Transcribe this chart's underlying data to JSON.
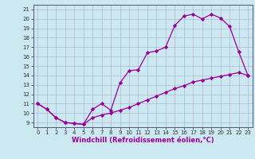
{
  "xlabel": "Windchill (Refroidissement éolien,°C)",
  "bg_color": "#cce8f0",
  "line_color": "#990099",
  "xlim": [
    -0.5,
    23.5
  ],
  "ylim": [
    8.5,
    21.5
  ],
  "xticks": [
    0,
    1,
    2,
    3,
    4,
    5,
    6,
    7,
    8,
    9,
    10,
    11,
    12,
    13,
    14,
    15,
    16,
    17,
    18,
    19,
    20,
    21,
    22,
    23
  ],
  "yticks": [
    9,
    10,
    11,
    12,
    13,
    14,
    15,
    16,
    17,
    18,
    19,
    20,
    21
  ],
  "upper_line_x": [
    0,
    1,
    2,
    3,
    4,
    5,
    6,
    7,
    8,
    9,
    10,
    11,
    12,
    13,
    14,
    15,
    16,
    17,
    18,
    19,
    20,
    21,
    22,
    23
  ],
  "upper_line_y": [
    11.0,
    10.4,
    9.5,
    9.0,
    8.9,
    8.8,
    10.4,
    11.0,
    10.3,
    13.2,
    14.5,
    14.6,
    16.4,
    16.6,
    17.0,
    19.3,
    20.3,
    20.5,
    20.0,
    20.5,
    20.1,
    19.2,
    16.5,
    14.0
  ],
  "lower_line_x": [
    0,
    1,
    2,
    3,
    4,
    5,
    6,
    7,
    8,
    9,
    10,
    11,
    12,
    13,
    14,
    15,
    16,
    17,
    18,
    19,
    20,
    21,
    22,
    23
  ],
  "lower_line_y": [
    11.0,
    10.4,
    9.5,
    9.0,
    8.9,
    8.8,
    9.5,
    9.8,
    10.0,
    10.3,
    10.6,
    11.0,
    11.4,
    11.8,
    12.2,
    12.6,
    12.9,
    13.3,
    13.5,
    13.7,
    13.9,
    14.1,
    14.3,
    14.0
  ],
  "tick_fontsize": 5,
  "xlabel_fontsize": 6
}
